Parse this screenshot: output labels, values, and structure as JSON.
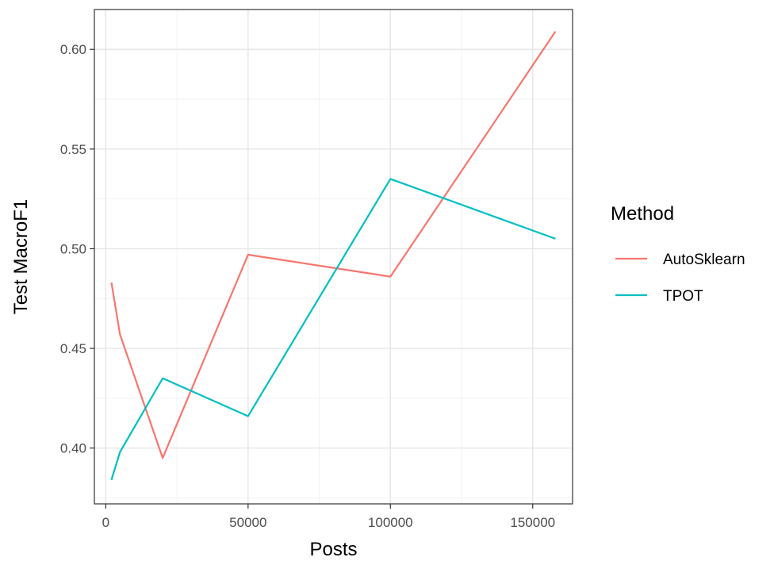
{
  "chart_data": {
    "type": "line",
    "xlabel": "Posts",
    "ylabel": "Test MacroF1",
    "xlim": [
      -4000,
      164000
    ],
    "ylim": [
      0.372,
      0.62
    ],
    "x_ticks": [
      0,
      50000,
      100000,
      150000
    ],
    "x_tick_labels": [
      "0",
      "50000",
      "100000",
      "150000"
    ],
    "y_ticks": [
      0.4,
      0.45,
      0.5,
      0.55,
      0.6
    ],
    "y_tick_labels": [
      "0.40",
      "0.45",
      "0.50",
      "0.55",
      "0.60"
    ],
    "grid": true,
    "legend_title": "Method",
    "legend_position": "right",
    "series": [
      {
        "name": "AutoSklearn",
        "color": "#F8766D",
        "x": [
          2000,
          5000,
          20000,
          50000,
          100000,
          158000
        ],
        "y": [
          0.483,
          0.457,
          0.395,
          0.497,
          0.486,
          0.609
        ]
      },
      {
        "name": "TPOT",
        "color": "#00BFC4",
        "x": [
          2000,
          5000,
          20000,
          50000,
          100000,
          158000
        ],
        "y": [
          0.384,
          0.398,
          0.435,
          0.416,
          0.535,
          0.505
        ]
      }
    ]
  }
}
